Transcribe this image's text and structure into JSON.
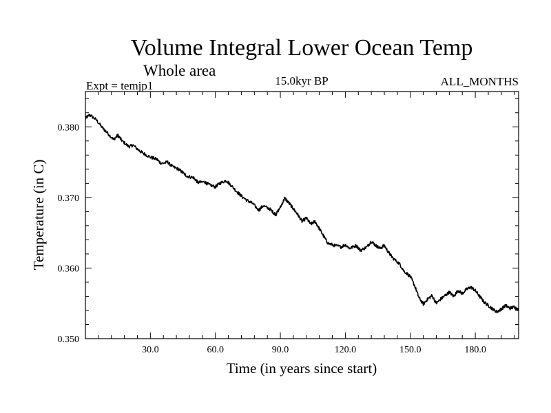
{
  "chart_data": {
    "type": "line",
    "title": "Volume Integral Lower Ocean Temp",
    "subtitle": "Whole area",
    "left_label": "Expt = temjp1",
    "center_label": "15.0kyr BP",
    "right_label": "ALL_MONTHS",
    "xlabel": "Time (in years since start)",
    "ylabel": "Temperature (in C)",
    "xlim": [
      0,
      200
    ],
    "ylim": [
      0.35,
      0.385
    ],
    "x_ticks": [
      "30.0",
      "60.0",
      "90.0",
      "120.0",
      "150.0",
      "180.0"
    ],
    "y_ticks": [
      "0.350",
      "0.360",
      "0.370",
      "0.380"
    ],
    "grid": false,
    "series": [
      {
        "name": "Volume integral lower ocean temperature",
        "color": "#000000",
        "x": [
          0,
          2,
          5,
          8,
          10,
          13,
          15,
          17,
          20,
          22,
          25,
          27,
          30,
          33,
          35,
          38,
          40,
          43,
          45,
          47,
          50,
          52,
          55,
          57,
          60,
          62,
          65,
          67,
          70,
          72,
          75,
          77,
          80,
          82,
          85,
          87,
          88,
          90,
          92,
          94,
          96,
          98,
          100,
          102,
          104,
          106,
          108,
          110,
          112,
          115,
          118,
          120,
          122,
          125,
          127,
          130,
          132,
          134,
          136,
          138,
          140,
          142,
          145,
          147,
          150,
          152,
          154,
          156,
          158,
          160,
          162,
          164,
          166,
          168,
          170,
          172,
          174,
          176,
          178,
          180,
          182,
          184,
          186,
          188,
          190,
          192,
          194,
          196,
          198,
          200
        ],
        "y": [
          0.3812,
          0.3817,
          0.381,
          0.3798,
          0.3792,
          0.3782,
          0.3788,
          0.378,
          0.3772,
          0.3774,
          0.3766,
          0.3762,
          0.3757,
          0.3754,
          0.3748,
          0.375,
          0.3744,
          0.374,
          0.3735,
          0.373,
          0.3728,
          0.3721,
          0.3722,
          0.3718,
          0.3715,
          0.372,
          0.3724,
          0.3718,
          0.3708,
          0.3702,
          0.3695,
          0.3692,
          0.3682,
          0.3688,
          0.3684,
          0.3678,
          0.3676,
          0.3686,
          0.3699,
          0.3692,
          0.3684,
          0.3676,
          0.3666,
          0.3671,
          0.3662,
          0.3666,
          0.3656,
          0.3645,
          0.3635,
          0.3632,
          0.363,
          0.3633,
          0.3628,
          0.3632,
          0.3625,
          0.363,
          0.3638,
          0.3632,
          0.3628,
          0.3632,
          0.3622,
          0.3614,
          0.3606,
          0.3596,
          0.3588,
          0.3575,
          0.3558,
          0.3549,
          0.3556,
          0.3561,
          0.355,
          0.3556,
          0.3561,
          0.3566,
          0.356,
          0.3568,
          0.3564,
          0.357,
          0.3573,
          0.3568,
          0.356,
          0.3552,
          0.3547,
          0.3542,
          0.3538,
          0.3542,
          0.3547,
          0.3543,
          0.3545,
          0.3541
        ]
      }
    ]
  }
}
